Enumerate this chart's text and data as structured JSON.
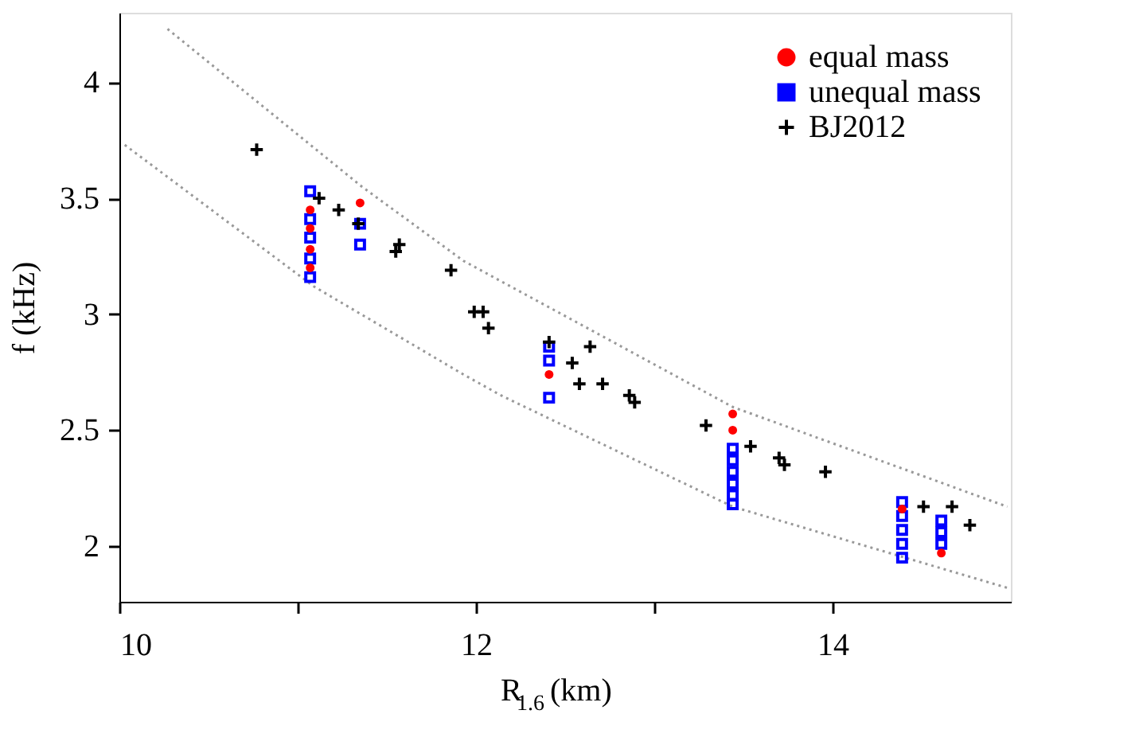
{
  "chart_data": {
    "type": "scatter",
    "xlabel": "R$_{1.6}$ (km)",
    "ylabel": "f (kHz)",
    "xlim": [
      10,
      15
    ],
    "ylim": [
      1.76,
      4.3
    ],
    "xticks": [
      10,
      {
        "value": 11,
        "label": null
      },
      12,
      {
        "value": 13,
        "label": null
      },
      14
    ],
    "yticks": [
      2,
      2.5,
      3,
      3.5,
      4
    ],
    "grid": false,
    "legend": "top right",
    "series": [
      {
        "type": "line",
        "color": "#999999",
        "line_style": "dotted",
        "marker": "none",
        "x": [
          10.27,
          11.36,
          11.93,
          13.44,
          14.98
        ],
        "values": [
          4.23,
          3.55,
          3.23,
          2.6,
          2.17
        ]
      },
      {
        "type": "line",
        "color": "#999999",
        "line_style": "dotted",
        "marker": "none",
        "x": [
          10.03,
          11.09,
          11.93,
          12.14,
          13.44,
          14.98
        ],
        "values": [
          3.73,
          3.12,
          2.74,
          2.65,
          2.17,
          1.82
        ]
      },
      {
        "name": "equal mass",
        "color": "#ff0000",
        "marker": "circle",
        "x": [
          11.07,
          11.07,
          11.07,
          11.07,
          11.35,
          12.41,
          13.44,
          13.44,
          14.39,
          14.61
        ],
        "values": [
          3.45,
          3.37,
          3.28,
          3.2,
          3.48,
          2.74,
          2.57,
          2.5,
          2.16,
          1.97
        ]
      },
      {
        "name": "unequal mass",
        "color": "#0000ff",
        "marker": "square",
        "x": [
          11.07,
          11.07,
          11.07,
          11.07,
          11.07,
          11.35,
          11.35,
          12.41,
          12.41,
          12.41,
          13.44,
          13.44,
          13.44,
          13.44,
          13.44,
          13.44,
          14.39,
          14.39,
          14.39,
          14.39,
          14.39,
          14.61,
          14.61,
          14.61
        ],
        "values": [
          3.53,
          3.41,
          3.33,
          3.24,
          3.16,
          3.39,
          3.3,
          2.86,
          2.8,
          2.64,
          2.42,
          2.37,
          2.32,
          2.27,
          2.22,
          2.18,
          2.19,
          2.13,
          2.07,
          2.01,
          1.95,
          2.11,
          2.06,
          2.01
        ]
      },
      {
        "name": "BJ2012",
        "color": "#000000",
        "marker": "cross",
        "x": [
          10.77,
          11.12,
          11.23,
          11.34,
          11.57,
          11.55,
          11.86,
          11.99,
          12.04,
          12.07,
          12.41,
          12.54,
          12.64,
          12.58,
          12.71,
          12.86,
          12.89,
          13.29,
          13.54,
          13.7,
          13.73,
          13.96,
          14.51,
          14.67,
          14.77
        ],
        "values": [
          3.71,
          3.5,
          3.45,
          3.39,
          3.3,
          3.27,
          3.19,
          3.01,
          3.01,
          2.94,
          2.88,
          2.79,
          2.86,
          2.7,
          2.7,
          2.65,
          2.62,
          2.52,
          2.43,
          2.38,
          2.35,
          2.32,
          2.17,
          2.17,
          2.09
        ]
      }
    ]
  }
}
